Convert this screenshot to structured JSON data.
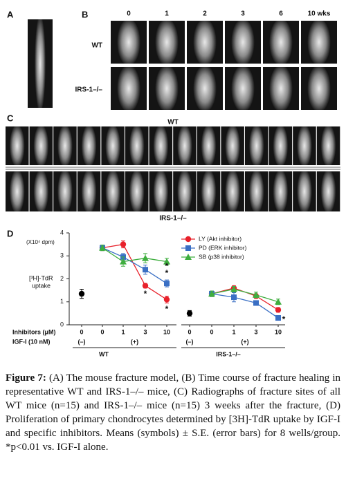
{
  "panels": {
    "A": {
      "label": "A"
    },
    "B": {
      "label": "B",
      "columns": [
        "0",
        "1",
        "2",
        "3",
        "6",
        "10 wks"
      ],
      "rows": [
        "WT",
        "IRS-1–/–"
      ]
    },
    "C": {
      "label": "C",
      "rows": [
        "WT",
        "IRS-1–/–"
      ]
    }
  },
  "chart_data": {
    "type": "line",
    "panel_label": "D",
    "y_unit": "(X10⁴ dpm)",
    "y_label": [
      "[³H]-TdR",
      "uptake"
    ],
    "x_row_label": "Inhibitors (μM)",
    "igf_label": "IGF-I (10 nM)",
    "categories": [
      "0",
      "0",
      "1",
      "3",
      "10",
      "0",
      "0",
      "1",
      "3",
      "10"
    ],
    "igf_groups": [
      "(–)",
      "(+)",
      "(–)",
      "(+)"
    ],
    "groups": [
      "WT",
      "IRS-1–/–"
    ],
    "ylim": [
      0,
      4
    ],
    "yticks": [
      0,
      1,
      2,
      3,
      4
    ],
    "control": {
      "color": "#000000",
      "values": [
        1.35,
        null,
        null,
        null,
        null,
        0.5,
        null,
        null,
        null,
        null
      ],
      "errors": [
        0.2,
        null,
        null,
        null,
        null,
        0.12,
        null,
        null,
        null,
        null
      ]
    },
    "series": [
      {
        "name": "LY (Akt inhibitor)",
        "color": "#e8202a",
        "marker": "circle",
        "values": [
          null,
          3.35,
          3.5,
          1.7,
          1.1,
          null,
          1.35,
          1.6,
          1.25,
          0.65
        ],
        "errors": [
          null,
          0.12,
          0.15,
          0.1,
          0.15,
          null,
          0.12,
          0.1,
          0.1,
          0.1
        ]
      },
      {
        "name": "PD (ERK inhibitor)",
        "color": "#3a6fc4",
        "marker": "square",
        "values": [
          null,
          3.35,
          2.95,
          2.4,
          1.8,
          null,
          1.35,
          1.2,
          0.95,
          0.3
        ],
        "errors": [
          null,
          0.12,
          0.15,
          0.2,
          0.15,
          null,
          0.12,
          0.2,
          0.1,
          0.08
        ]
      },
      {
        "name": "SB (p38 inhibitor)",
        "color": "#3fae3f",
        "marker": "triangle",
        "values": [
          null,
          3.35,
          2.75,
          2.9,
          2.75,
          null,
          1.35,
          1.55,
          1.3,
          1.0
        ],
        "errors": [
          null,
          0.12,
          0.2,
          0.2,
          0.15,
          null,
          0.12,
          0.12,
          0.12,
          0.12
        ]
      }
    ],
    "annotations": [
      "*",
      "*",
      "*",
      "*",
      "*"
    ]
  },
  "caption": {
    "label": "Figure 7:",
    "text": "(A) The mouse fracture model, (B) Time course of fracture healing in representative WT and IRS-1–/– mice, (C) Radiographs of fracture sites of all WT mice (n=15) and IRS-1–/– mice (n=15) 3 weeks after the fracture, (D) Proliferation of primary chondrocytes determined by [3H]-TdR uptake by IGF-I and specific inhibitors. Means (symbols) ± S.E. (error bars) for 8 wells/group. *p<0.01 vs. IGF-I alone."
  }
}
